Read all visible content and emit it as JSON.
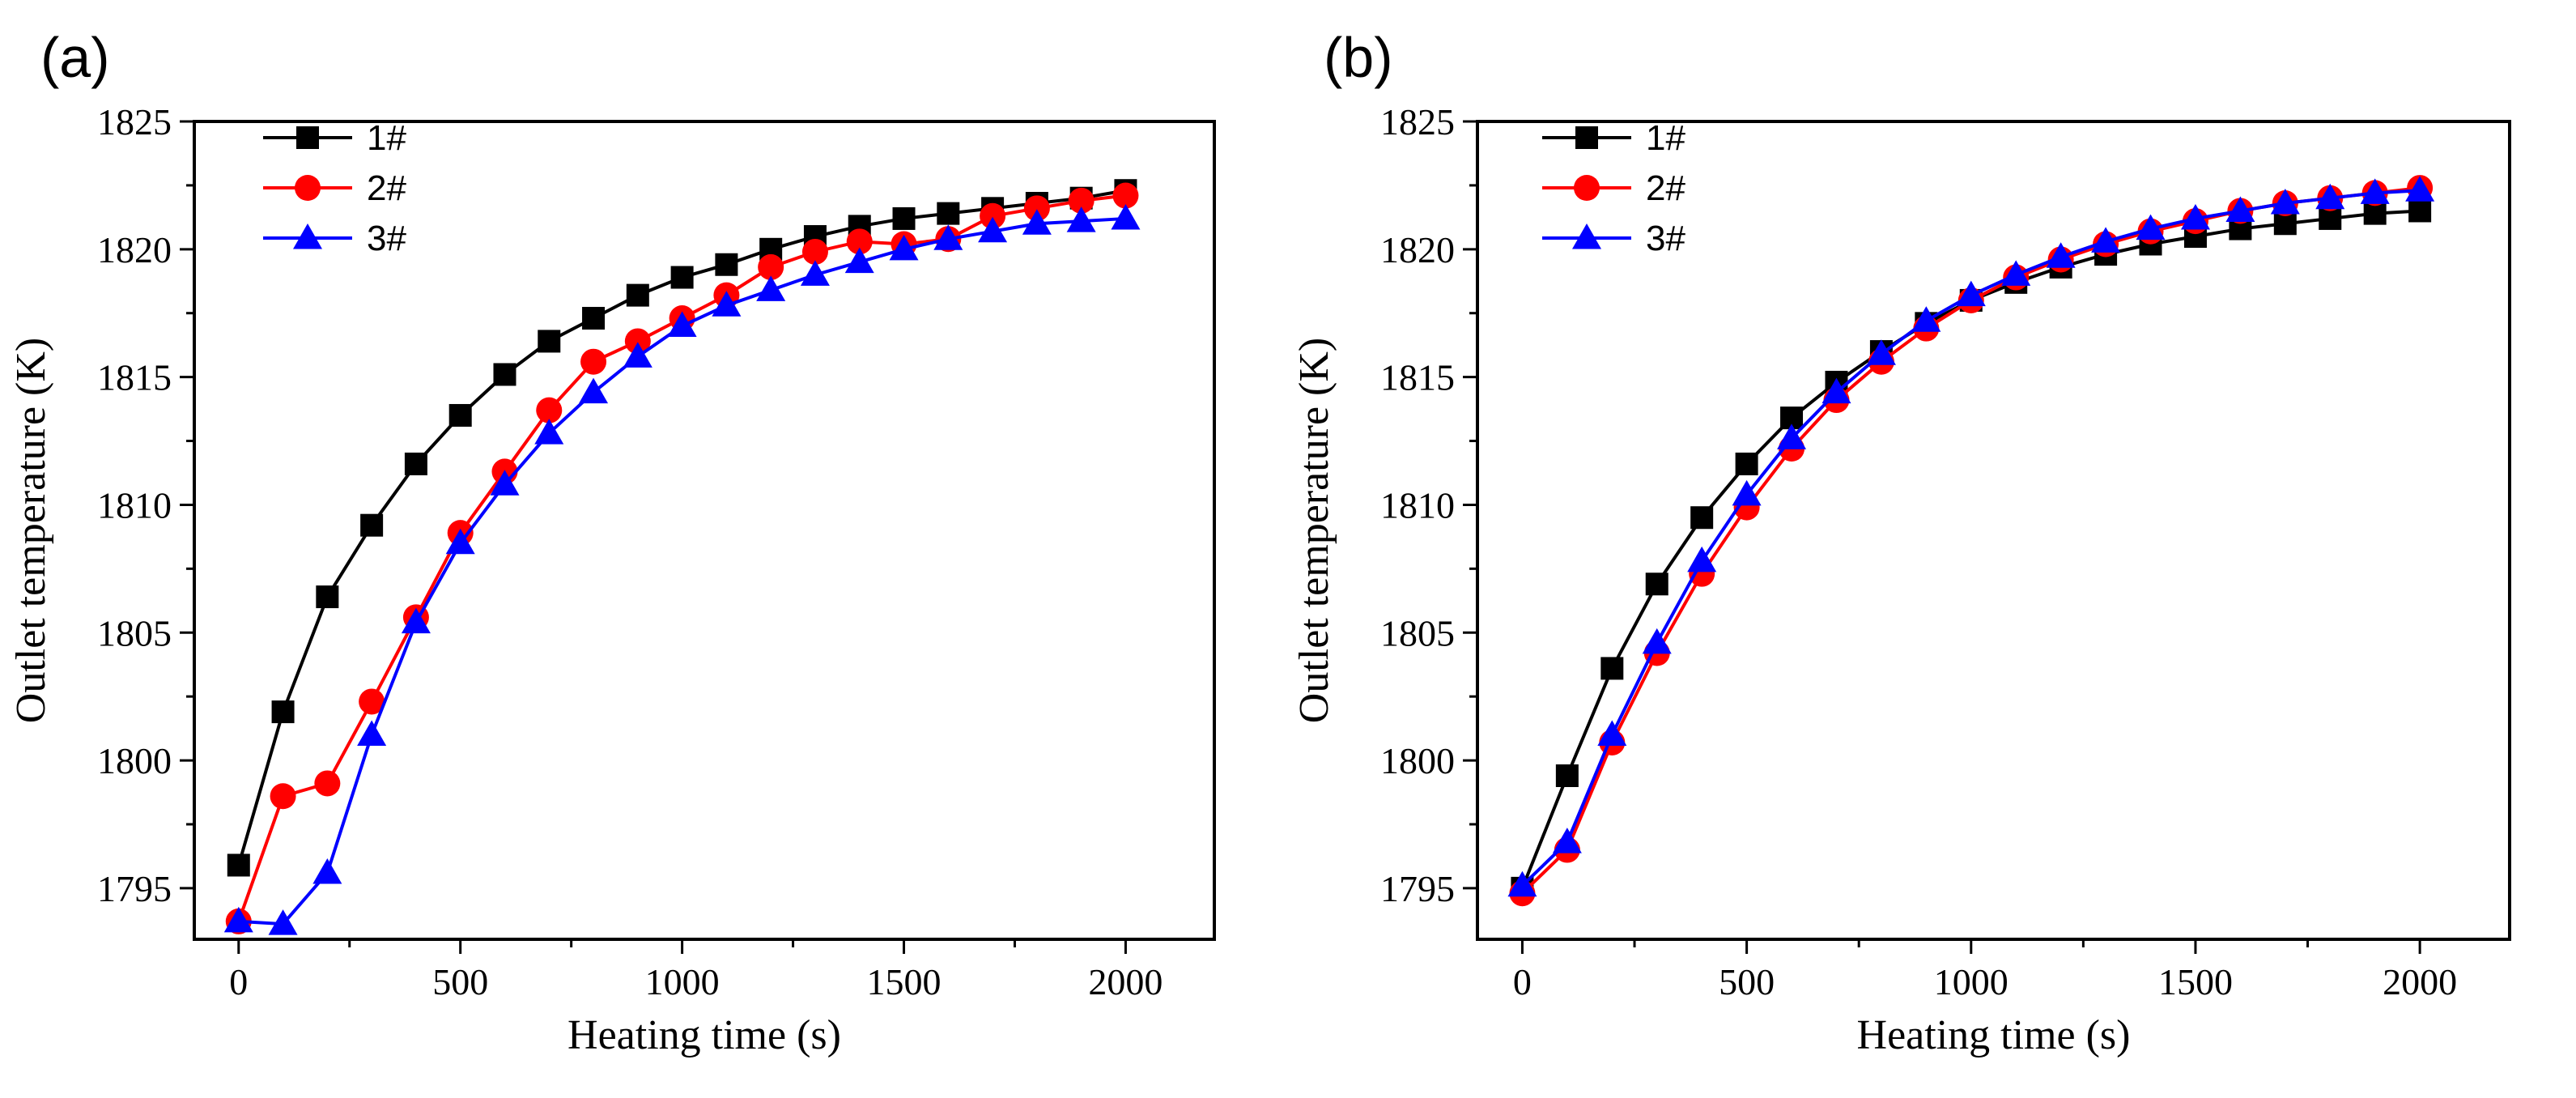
{
  "chart_data": [
    {
      "type": "line",
      "panel_label": "(a)",
      "xlabel": "Heating time (s)",
      "ylabel": "Outlet temperature (K)",
      "xlim": [
        -100,
        2200
      ],
      "ylim": [
        1793,
        1825
      ],
      "xticks": [
        0,
        500,
        1000,
        1500,
        2000
      ],
      "yticks": [
        1795,
        1800,
        1805,
        1810,
        1815,
        1820,
        1825
      ],
      "legend_position": "top-left",
      "x": [
        0,
        100,
        200,
        300,
        400,
        500,
        600,
        700,
        800,
        900,
        1000,
        1100,
        1200,
        1300,
        1400,
        1500,
        1600,
        1700,
        1800,
        1900,
        2000
      ],
      "series": [
        {
          "name": "1#",
          "color": "#000000",
          "marker": "square",
          "values": [
            1795.9,
            1801.9,
            1806.4,
            1809.2,
            1811.6,
            1813.5,
            1815.1,
            1816.4,
            1817.3,
            1818.2,
            1818.9,
            1819.4,
            1820.0,
            1820.5,
            1820.9,
            1821.2,
            1821.4,
            1821.6,
            1821.8,
            1822.0,
            1822.3
          ]
        },
        {
          "name": "2#",
          "color": "#ff0000",
          "marker": "circle",
          "values": [
            1793.7,
            1798.6,
            1799.1,
            1802.3,
            1805.6,
            1808.9,
            1811.3,
            1813.7,
            1815.6,
            1816.4,
            1817.3,
            1818.2,
            1819.3,
            1819.9,
            1820.3,
            1820.2,
            1820.4,
            1821.3,
            1821.6,
            1821.9,
            1822.1
          ]
        },
        {
          "name": "3#",
          "color": "#0000ff",
          "marker": "triangle",
          "values": [
            1793.7,
            1793.6,
            1795.6,
            1801.0,
            1805.4,
            1808.5,
            1810.8,
            1812.8,
            1814.4,
            1815.8,
            1817.0,
            1817.8,
            1818.4,
            1819.0,
            1819.5,
            1820.0,
            1820.4,
            1820.7,
            1821.0,
            1821.1,
            1821.2
          ]
        }
      ]
    },
    {
      "type": "line",
      "panel_label": "(b)",
      "xlabel": "Heating time (s)",
      "ylabel": "Outlet temperature (K)",
      "xlim": [
        -100,
        2200
      ],
      "ylim": [
        1793,
        1825
      ],
      "xticks": [
        0,
        500,
        1000,
        1500,
        2000
      ],
      "yticks": [
        1795,
        1800,
        1805,
        1810,
        1815,
        1820,
        1825
      ],
      "legend_position": "top-left",
      "x": [
        0,
        100,
        200,
        300,
        400,
        500,
        600,
        700,
        800,
        900,
        1000,
        1100,
        1200,
        1300,
        1400,
        1500,
        1600,
        1700,
        1800,
        1900,
        2000
      ],
      "series": [
        {
          "name": "1#",
          "color": "#000000",
          "marker": "square",
          "values": [
            1795.0,
            1799.4,
            1803.6,
            1806.9,
            1809.5,
            1811.6,
            1813.4,
            1814.8,
            1816.0,
            1817.1,
            1818.0,
            1818.7,
            1819.3,
            1819.8,
            1820.2,
            1820.5,
            1820.8,
            1821.0,
            1821.2,
            1821.4,
            1821.5
          ]
        },
        {
          "name": "2#",
          "color": "#ff0000",
          "marker": "circle",
          "values": [
            1794.8,
            1796.5,
            1800.7,
            1804.2,
            1807.3,
            1809.9,
            1812.2,
            1814.1,
            1815.6,
            1816.9,
            1818.0,
            1818.9,
            1819.6,
            1820.2,
            1820.7,
            1821.1,
            1821.5,
            1821.8,
            1822.0,
            1822.2,
            1822.4
          ]
        },
        {
          "name": "3#",
          "color": "#0000ff",
          "marker": "triangle",
          "values": [
            1795.1,
            1796.8,
            1801.0,
            1804.6,
            1807.8,
            1810.4,
            1812.6,
            1814.4,
            1815.9,
            1817.2,
            1818.2,
            1819.0,
            1819.7,
            1820.3,
            1820.8,
            1821.2,
            1821.5,
            1821.8,
            1822.0,
            1822.2,
            1822.3
          ]
        }
      ]
    }
  ]
}
